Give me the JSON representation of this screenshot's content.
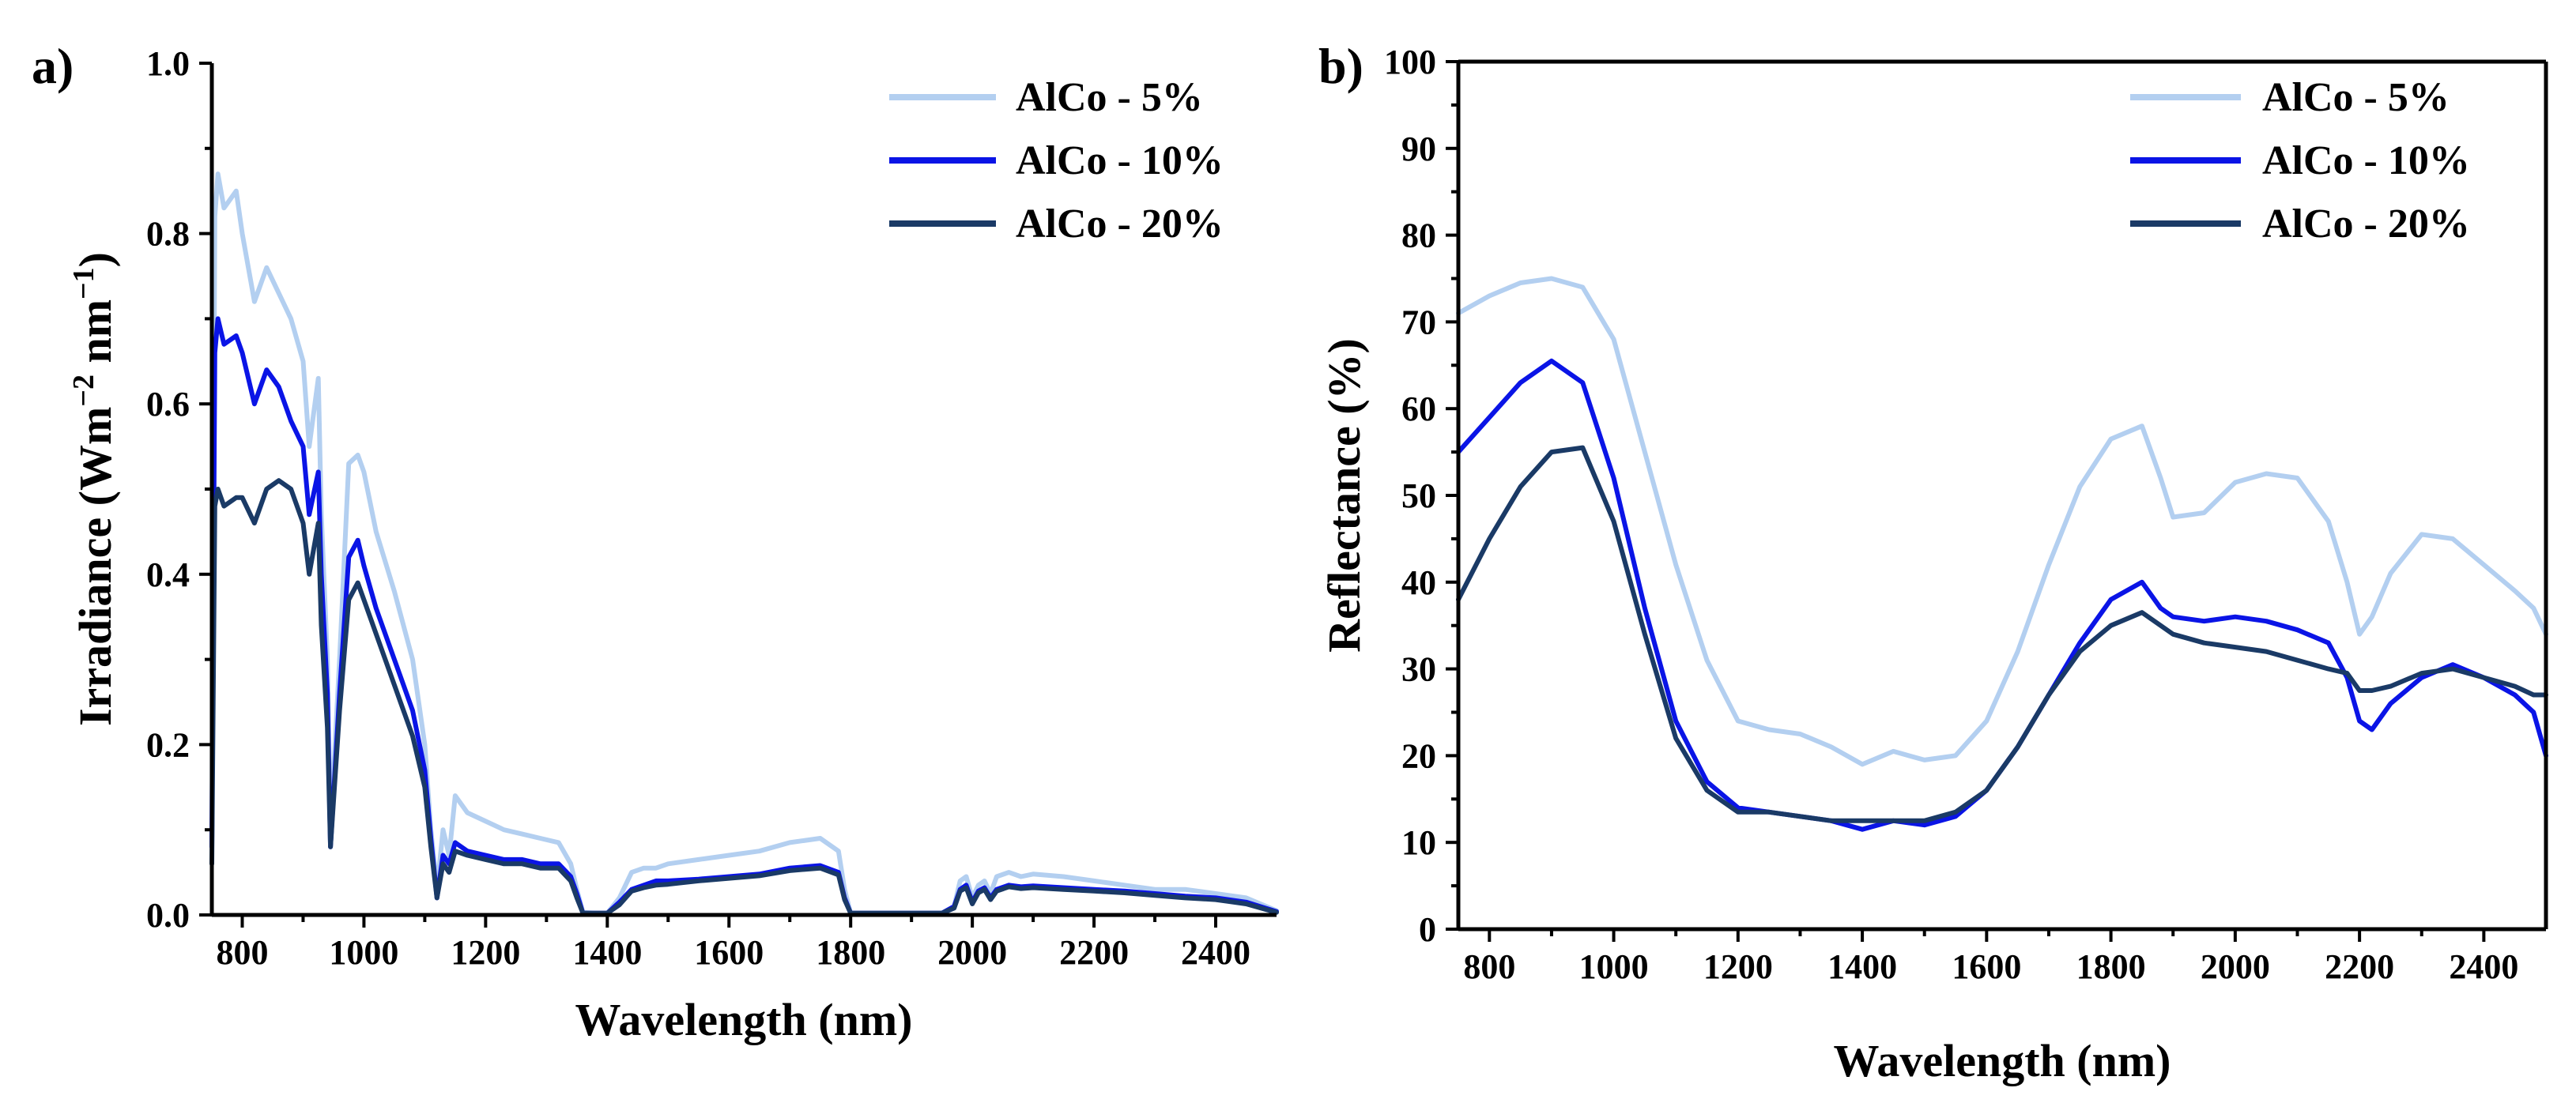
{
  "chart_data": [
    {
      "type": "line",
      "panel": "a)",
      "title": "",
      "xlabel": "Wavelength (nm)",
      "ylabel": "Irradiance (Wm−2 nm−1)",
      "ylabel_parts": {
        "base": "Irradiance (Wm",
        "exp1": "−2",
        "mid": " nm",
        "exp2": "−1",
        "end": ")"
      },
      "xlim": [
        750,
        2500
      ],
      "ylim": [
        0.0,
        1.0
      ],
      "xticks": [
        800,
        1000,
        1200,
        1400,
        1600,
        1800,
        2000,
        2200,
        2400
      ],
      "yticks": [
        0.0,
        0.2,
        0.4,
        0.6,
        0.8,
        1.0
      ],
      "ytick_labels": [
        "0.0",
        "0.2",
        "0.4",
        "0.6",
        "0.8",
        "1.0"
      ],
      "legend_position": "top-right",
      "series": [
        {
          "name": "AlCo - 5%",
          "color": "#b3cff0",
          "x": [
            750,
            755,
            760,
            770,
            790,
            800,
            820,
            840,
            860,
            880,
            900,
            910,
            925,
            930,
            940,
            945,
            960,
            975,
            990,
            1000,
            1020,
            1050,
            1080,
            1100,
            1110,
            1120,
            1130,
            1140,
            1150,
            1170,
            1200,
            1230,
            1260,
            1290,
            1320,
            1340,
            1350,
            1360,
            1380,
            1400,
            1420,
            1440,
            1460,
            1480,
            1500,
            1550,
            1600,
            1650,
            1700,
            1750,
            1780,
            1790,
            1800,
            1820,
            1850,
            1900,
            1950,
            1970,
            1980,
            1990,
            2000,
            2010,
            2020,
            2030,
            2040,
            2060,
            2080,
            2100,
            2150,
            2200,
            2250,
            2300,
            2350,
            2400,
            2450,
            2500
          ],
          "y": [
            0.1,
            0.82,
            0.87,
            0.83,
            0.85,
            0.8,
            0.72,
            0.76,
            0.73,
            0.7,
            0.65,
            0.55,
            0.63,
            0.47,
            0.3,
            0.1,
            0.3,
            0.53,
            0.54,
            0.52,
            0.45,
            0.38,
            0.3,
            0.2,
            0.1,
            0.03,
            0.1,
            0.07,
            0.14,
            0.12,
            0.11,
            0.1,
            0.095,
            0.09,
            0.085,
            0.06,
            0.03,
            0.003,
            0.002,
            0.002,
            0.02,
            0.05,
            0.055,
            0.055,
            0.06,
            0.065,
            0.07,
            0.075,
            0.085,
            0.09,
            0.075,
            0.03,
            0.002,
            0.002,
            0.002,
            0.002,
            0.002,
            0.01,
            0.04,
            0.045,
            0.02,
            0.035,
            0.04,
            0.025,
            0.045,
            0.05,
            0.045,
            0.048,
            0.045,
            0.04,
            0.035,
            0.03,
            0.03,
            0.025,
            0.02,
            0.005
          ]
        },
        {
          "name": "AlCo - 10%",
          "color": "#0a14e6",
          "x": [
            750,
            755,
            760,
            770,
            790,
            800,
            820,
            840,
            860,
            880,
            900,
            910,
            925,
            930,
            940,
            945,
            960,
            975,
            990,
            1000,
            1020,
            1050,
            1080,
            1100,
            1110,
            1120,
            1130,
            1140,
            1150,
            1170,
            1200,
            1230,
            1260,
            1290,
            1320,
            1340,
            1350,
            1360,
            1380,
            1400,
            1420,
            1440,
            1460,
            1480,
            1500,
            1550,
            1600,
            1650,
            1700,
            1750,
            1780,
            1790,
            1800,
            1820,
            1850,
            1900,
            1950,
            1970,
            1980,
            1990,
            2000,
            2010,
            2020,
            2030,
            2040,
            2060,
            2080,
            2100,
            2150,
            2200,
            2250,
            2300,
            2350,
            2400,
            2450,
            2500
          ],
          "y": [
            0.08,
            0.66,
            0.7,
            0.67,
            0.68,
            0.66,
            0.6,
            0.64,
            0.62,
            0.58,
            0.55,
            0.47,
            0.52,
            0.4,
            0.26,
            0.08,
            0.26,
            0.42,
            0.44,
            0.41,
            0.36,
            0.3,
            0.24,
            0.17,
            0.09,
            0.02,
            0.07,
            0.06,
            0.085,
            0.075,
            0.07,
            0.065,
            0.065,
            0.06,
            0.06,
            0.045,
            0.025,
            0.002,
            0.002,
            0.002,
            0.015,
            0.03,
            0.035,
            0.04,
            0.04,
            0.042,
            0.045,
            0.048,
            0.055,
            0.058,
            0.05,
            0.02,
            0.002,
            0.002,
            0.002,
            0.002,
            0.002,
            0.01,
            0.03,
            0.035,
            0.015,
            0.028,
            0.032,
            0.02,
            0.03,
            0.035,
            0.033,
            0.034,
            0.032,
            0.03,
            0.028,
            0.025,
            0.022,
            0.02,
            0.015,
            0.004
          ]
        },
        {
          "name": "AlCo - 20%",
          "color": "#1a3a66",
          "x": [
            750,
            755,
            760,
            770,
            790,
            800,
            820,
            840,
            860,
            880,
            900,
            910,
            925,
            930,
            940,
            945,
            960,
            975,
            990,
            1000,
            1020,
            1050,
            1080,
            1100,
            1110,
            1120,
            1130,
            1140,
            1150,
            1170,
            1200,
            1230,
            1260,
            1290,
            1320,
            1340,
            1350,
            1360,
            1380,
            1400,
            1420,
            1440,
            1460,
            1480,
            1500,
            1550,
            1600,
            1650,
            1700,
            1750,
            1780,
            1790,
            1800,
            1820,
            1850,
            1900,
            1950,
            1970,
            1980,
            1990,
            2000,
            2010,
            2020,
            2030,
            2040,
            2060,
            2080,
            2100,
            2150,
            2200,
            2250,
            2300,
            2350,
            2400,
            2450,
            2500
          ],
          "y": [
            0.06,
            0.48,
            0.5,
            0.48,
            0.49,
            0.49,
            0.46,
            0.5,
            0.51,
            0.5,
            0.46,
            0.4,
            0.46,
            0.34,
            0.22,
            0.08,
            0.24,
            0.37,
            0.39,
            0.37,
            0.33,
            0.27,
            0.21,
            0.15,
            0.08,
            0.02,
            0.06,
            0.05,
            0.075,
            0.07,
            0.065,
            0.06,
            0.06,
            0.055,
            0.055,
            0.04,
            0.02,
            0.002,
            0.002,
            0.002,
            0.012,
            0.028,
            0.032,
            0.035,
            0.036,
            0.04,
            0.043,
            0.046,
            0.052,
            0.055,
            0.047,
            0.018,
            0.002,
            0.002,
            0.002,
            0.002,
            0.002,
            0.008,
            0.028,
            0.032,
            0.013,
            0.026,
            0.03,
            0.018,
            0.028,
            0.033,
            0.031,
            0.032,
            0.03,
            0.028,
            0.026,
            0.023,
            0.02,
            0.018,
            0.013,
            0.003
          ]
        }
      ]
    },
    {
      "type": "line",
      "panel": "b)",
      "title": "",
      "xlabel": "Wavelength (nm)",
      "ylabel": "Reflectance (%)",
      "xlim": [
        750,
        2500
      ],
      "ylim": [
        0,
        100
      ],
      "xticks": [
        800,
        1000,
        1200,
        1400,
        1600,
        1800,
        2000,
        2200,
        2400
      ],
      "yticks": [
        0,
        10,
        20,
        30,
        40,
        50,
        60,
        70,
        80,
        90,
        100
      ],
      "ytick_labels": [
        "0",
        "10",
        "20",
        "30",
        "40",
        "50",
        "60",
        "70",
        "80",
        "90",
        "100"
      ],
      "legend_position": "top-right",
      "series": [
        {
          "name": "AlCo - 5%",
          "color": "#b3cff0",
          "x": [
            750,
            800,
            850,
            900,
            950,
            1000,
            1050,
            1100,
            1150,
            1200,
            1250,
            1300,
            1350,
            1400,
            1450,
            1500,
            1550,
            1600,
            1650,
            1700,
            1750,
            1800,
            1850,
            1880,
            1900,
            1950,
            2000,
            2050,
            2100,
            2150,
            2180,
            2200,
            2220,
            2250,
            2300,
            2350,
            2400,
            2450,
            2480,
            2500
          ],
          "y": [
            71,
            73,
            74.5,
            75,
            74,
            68,
            55,
            42,
            31,
            24,
            23,
            22.5,
            21,
            19,
            20.5,
            19.5,
            20,
            24,
            32,
            42,
            51,
            56.5,
            58,
            52,
            47.5,
            48,
            51.5,
            52.5,
            52,
            47,
            40,
            34,
            36,
            41,
            45.5,
            45,
            42,
            39,
            37,
            34
          ]
        },
        {
          "name": "AlCo - 10%",
          "color": "#0a14e6",
          "x": [
            750,
            800,
            850,
            900,
            950,
            1000,
            1050,
            1100,
            1150,
            1200,
            1250,
            1300,
            1350,
            1400,
            1450,
            1500,
            1550,
            1600,
            1650,
            1700,
            1750,
            1800,
            1850,
            1880,
            1900,
            1950,
            2000,
            2050,
            2100,
            2150,
            2180,
            2200,
            2220,
            2250,
            2300,
            2350,
            2400,
            2450,
            2480,
            2500
          ],
          "y": [
            55,
            59,
            63,
            65.5,
            63,
            52,
            37,
            24,
            17,
            14,
            13.5,
            13,
            12.5,
            11.5,
            12.5,
            12,
            13,
            16,
            21,
            27,
            33,
            38,
            40,
            37,
            36,
            35.5,
            36,
            35.5,
            34.5,
            33,
            29,
            24,
            23,
            26,
            29,
            30.5,
            29,
            27,
            25,
            20
          ]
        },
        {
          "name": "AlCo - 20%",
          "color": "#1a3a66",
          "x": [
            750,
            800,
            850,
            900,
            950,
            1000,
            1050,
            1100,
            1150,
            1200,
            1250,
            1300,
            1350,
            1400,
            1450,
            1500,
            1550,
            1600,
            1650,
            1700,
            1750,
            1800,
            1850,
            1880,
            1900,
            1950,
            2000,
            2050,
            2100,
            2150,
            2180,
            2200,
            2220,
            2250,
            2300,
            2350,
            2400,
            2450,
            2480,
            2500
          ],
          "y": [
            38,
            45,
            51,
            55,
            55.5,
            47,
            34,
            22,
            16,
            13.5,
            13.5,
            13,
            12.5,
            12.5,
            12.5,
            12.5,
            13.5,
            16,
            21,
            27,
            32,
            35,
            36.5,
            35,
            34,
            33,
            32.5,
            32,
            31,
            30,
            29.5,
            27.5,
            27.5,
            28,
            29.5,
            30,
            29,
            28,
            27,
            27
          ]
        }
      ]
    }
  ]
}
